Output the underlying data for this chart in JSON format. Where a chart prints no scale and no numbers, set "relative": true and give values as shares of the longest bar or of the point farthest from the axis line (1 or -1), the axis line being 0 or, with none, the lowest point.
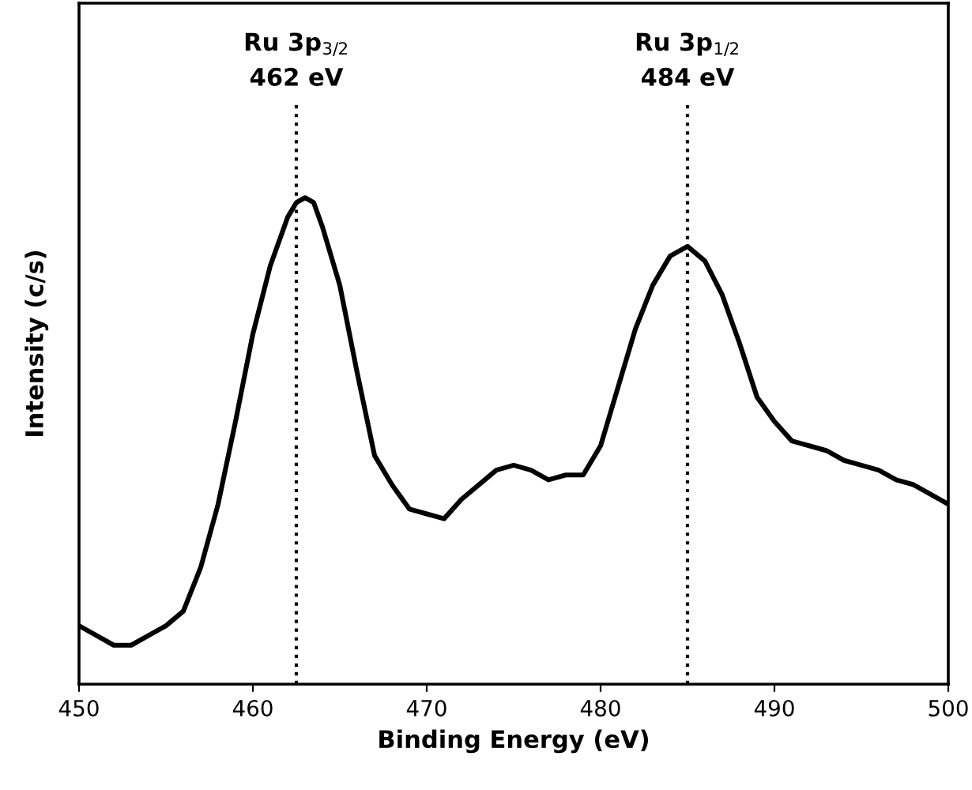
{
  "chart_data": {
    "type": "line",
    "relative": true,
    "xlabel": "Binding Energy (eV)",
    "ylabel": "Intensity (c/s)",
    "xlim": [
      450,
      500
    ],
    "xticks": [
      450,
      460,
      470,
      480,
      490,
      500
    ],
    "grid": false,
    "legend": false,
    "marker": "none",
    "line_style": "solid",
    "tick_labels": "x",
    "x": [
      450,
      451,
      452,
      453,
      454,
      455,
      456,
      457,
      458,
      459,
      460,
      461,
      462,
      462.5,
      463,
      463.5,
      464,
      465,
      466,
      467,
      468,
      469,
      470,
      471,
      472,
      473,
      474,
      475,
      476,
      477,
      478,
      479,
      480,
      481,
      482,
      483,
      484,
      485,
      486,
      487,
      488,
      489,
      490,
      491,
      492,
      493,
      494,
      495,
      496,
      497,
      498,
      499,
      500
    ],
    "series": [
      {
        "color": "#000000",
        "values": [
          0.12,
          0.1,
          0.08,
          0.08,
          0.1,
          0.12,
          0.15,
          0.24,
          0.37,
          0.54,
          0.72,
          0.86,
          0.96,
          0.99,
          1.0,
          0.99,
          0.94,
          0.82,
          0.64,
          0.47,
          0.41,
          0.36,
          0.35,
          0.34,
          0.38,
          0.41,
          0.44,
          0.45,
          0.44,
          0.42,
          0.43,
          0.43,
          0.49,
          0.61,
          0.73,
          0.82,
          0.88,
          0.9,
          0.87,
          0.8,
          0.7,
          0.59,
          0.54,
          0.5,
          0.49,
          0.48,
          0.46,
          0.45,
          0.44,
          0.42,
          0.41,
          0.39,
          0.37
        ]
      }
    ],
    "ref_lines": [
      {
        "axis": "x",
        "value": 462.5,
        "label": "Ru 3p$_{3/2}$\n462 eV",
        "color": "#000000",
        "line_style": "dotted"
      },
      {
        "axis": "x",
        "value": 485,
        "label": "Ru 3p$_{1/2}$\n484 eV",
        "color": "#000000",
        "line_style": "dotted"
      }
    ]
  }
}
